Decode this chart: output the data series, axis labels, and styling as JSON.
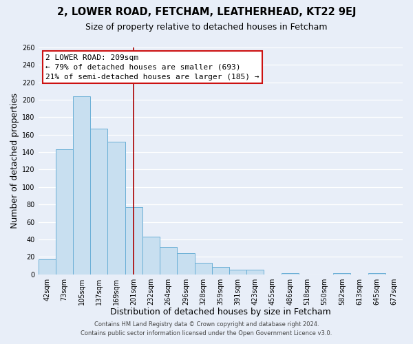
{
  "title": "2, LOWER ROAD, FETCHAM, LEATHERHEAD, KT22 9EJ",
  "subtitle": "Size of property relative to detached houses in Fetcham",
  "xlabel": "Distribution of detached houses by size in Fetcham",
  "ylabel": "Number of detached properties",
  "bar_labels": [
    "42sqm",
    "73sqm",
    "105sqm",
    "137sqm",
    "169sqm",
    "201sqm",
    "232sqm",
    "264sqm",
    "296sqm",
    "328sqm",
    "359sqm",
    "391sqm",
    "423sqm",
    "455sqm",
    "486sqm",
    "518sqm",
    "550sqm",
    "582sqm",
    "613sqm",
    "645sqm",
    "677sqm"
  ],
  "bar_heights": [
    17,
    143,
    204,
    167,
    152,
    77,
    43,
    31,
    24,
    13,
    8,
    5,
    5,
    0,
    1,
    0,
    0,
    1,
    0,
    1,
    0
  ],
  "bar_color": "#c8dff0",
  "bar_edge_color": "#6aafd6",
  "vline_x_index": 5,
  "vline_color": "#aa0000",
  "annotation_text_line1": "2 LOWER ROAD: 209sqm",
  "annotation_text_line2": "← 79% of detached houses are smaller (693)",
  "annotation_text_line3": "21% of semi-detached houses are larger (185) →",
  "ylim": [
    0,
    260
  ],
  "yticks": [
    0,
    20,
    40,
    60,
    80,
    100,
    120,
    140,
    160,
    180,
    200,
    220,
    240,
    260
  ],
  "footer_line1": "Contains HM Land Registry data © Crown copyright and database right 2024.",
  "footer_line2": "Contains public sector information licensed under the Open Government Licence v3.0.",
  "background_color": "#e8eef8",
  "grid_color": "#ffffff",
  "title_fontsize": 10.5,
  "subtitle_fontsize": 9,
  "axis_label_fontsize": 9,
  "tick_fontsize": 7,
  "footer_fontsize": 6,
  "annotation_fontsize": 8
}
